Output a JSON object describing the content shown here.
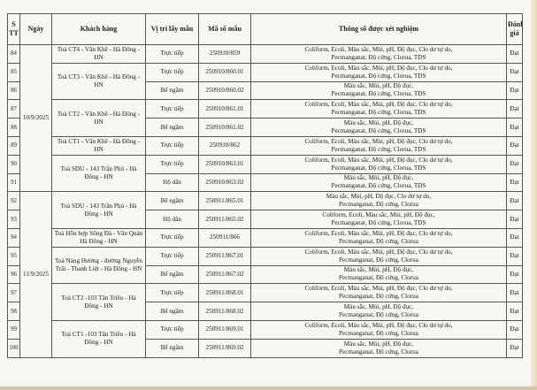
{
  "headers": {
    "stt": "S TT",
    "date": "Ngày",
    "customer": "Khách hàng",
    "location": "Vị trí lấy mẫu",
    "code": "Mã số mẫu",
    "params": "Thông số được xét nghiệm",
    "result": "Đánh giá"
  },
  "dates": [
    {
      "label": "10/9/2025",
      "rows": 8
    },
    {
      "label": "11/9/2025",
      "rows": 9
    }
  ],
  "customers": [
    {
      "line1": "Toà CT4 - Văn Khê - Hà Đông -",
      "line2": "HN",
      "rows": 1
    },
    {
      "line1": "Toà CT3 - Văn Khê - Hà Đông -",
      "line2": "HN",
      "rows": 2
    },
    {
      "line1": "Toà CT2 - Văn Khê - Hà Đông -",
      "line2": "HN",
      "rows": 2
    },
    {
      "line1": "Toà CT1 - Văn Khê - Hà Đông -",
      "line2": "HN",
      "rows": 1
    },
    {
      "line1": "Toà SDU - 143 Trần Phú  - Hà",
      "line2": "Đông - HN",
      "rows": 2
    },
    {
      "line1": "Toà SDU - 143 Trần Phú  - Hà",
      "line2": "Đông - HN",
      "rows": 2
    },
    {
      "line1": "Toà Hỗn hợp Sông Đà - Văn Quán",
      "line2": "Hà Đông - HN",
      "rows": 1
    },
    {
      "line1": "Toà Nàng Hương - đường Nguyễn",
      "line2": "Trãi - Thanh Liệt - Hà Đông - HN",
      "rows": 2
    },
    {
      "line1": "Toà CT2 -103 Tân Triều - Hà",
      "line2": "Đông - HN",
      "rows": 2
    },
    {
      "line1": "Toà CT1 -103 Tân Triều - Hà",
      "line2": "Đông - HN",
      "rows": 2
    }
  ],
  "rows": [
    {
      "stt": "84",
      "location": "Trực tiếp",
      "code": "250910/859",
      "p1": "Coliform, Ecoli, Màu sắc, Mùi, pH, Độ đục, Clo dư tự do,",
      "p2": "Pecmanganat, Độ cứng, Clorua, TDS",
      "result": "Đạt"
    },
    {
      "stt": "85",
      "location": "Trực tiếp",
      "code": "250910/860.01",
      "p1": "Coliform, Ecoli, Màu sắc, Mùi, pH, Độ đục, Clo dư tự do,",
      "p2": "Pecmanganat, Độ cứng, Clorua, TDS",
      "result": "Đạt"
    },
    {
      "stt": "86",
      "location": "Bể ngầm",
      "code": "250910/860.02",
      "p1": "Màu sắc, Mùi, pH, Độ đục,",
      "p2": "Pecmanganat, Độ cứng, Clorua, TDS",
      "result": "Đạt"
    },
    {
      "stt": "87",
      "location": "Trực tiếp",
      "code": "250910/861.01",
      "p1": "Coliform, Ecoli, Màu sắc, Mùi, pH, Độ đục, Clo dư tự do,",
      "p2": "Pecmanganat, Độ cứng, Clorua, TDS",
      "result": "Đạt"
    },
    {
      "stt": "88",
      "location": "Bể ngầm",
      "code": "250910/861.02",
      "p1": "Màu sắc, Mùi, pH, Độ đục,",
      "p2": "Pecmanganat, Độ cứng, Clorua, TDS",
      "result": "Đạt"
    },
    {
      "stt": "89",
      "location": "Trực tiếp",
      "code": "250910/862",
      "p1": "Coliform, Ecoli, Màu sắc, Mùi, pH, Độ đục, Clo dư tự do,",
      "p2": "Pecmanganat, Độ cứng, Clorua, TDS",
      "result": "Đạt"
    },
    {
      "stt": "90",
      "location": "Trực tiếp",
      "code": "250910/863.01",
      "p1": "Coliform, Ecoli, Màu sắc, Mùi, pH, Độ đục, Clo dư tự do,",
      "p2": "Pecmanganat, Độ cứng, Clorua, TDS",
      "result": "Đạt"
    },
    {
      "stt": "91",
      "location": "Hộ dân",
      "code": "250910/863.02",
      "p1": "Màu sắc, Mùi, pH, Độ đục,",
      "p2": "Pecmanganat, Độ cứng, Clorua, TDS",
      "result": "Đạt"
    },
    {
      "stt": "92",
      "location": "Bể ngầm",
      "code": "250911/865.01",
      "p1": "Màu sắc, Mùi, pH, Độ đục, Clo dư tự do,",
      "p2": "Pecmanganat, Độ cứng, Clorua",
      "result": "Đạt"
    },
    {
      "stt": "93",
      "location": "Hộ dân",
      "code": "250911/865.02",
      "p1": "Coliform, Ecoli, Màu sắc, Mùi, pH, Độ đục,",
      "p2": "Pecmanganat, Độ cứng, Clorua, TDS",
      "result": "Đạt"
    },
    {
      "stt": "94",
      "location": "Trực tiếp",
      "code": "250911/866",
      "p1": "Coliform, Ecoli, Màu sắc, Mùi, pH, Độ đục, Clo dư tự do,",
      "p2": "Pecmanganat, Độ cứng, Clorua",
      "result": "Đạt"
    },
    {
      "stt": "95",
      "location": "Trực tiếp",
      "code": "250911/867.01",
      "p1": "Coliform, Ecoli, Màu sắc, Mùi, pH, Độ đục, Clo dư tự do,",
      "p2": "Pecmanganat, Độ cứng, Clorua",
      "result": "Đạt"
    },
    {
      "stt": "96",
      "location": "Bể ngầm",
      "code": "250911/867.02",
      "p1": "Màu sắc, Mùi, pH, Độ đục,",
      "p2": "Pecmanganat, Độ cứng, Clorua",
      "result": "Đạt"
    },
    {
      "stt": "97",
      "location": "Trực tiếp",
      "code": "250911/868.01",
      "p1": "Coliform, Ecoli, Màu sắc, Mùi, pH, Độ đục, Clo dư tự do,",
      "p2": "Pecmanganat, Độ cứng, Clorua",
      "result": "Đạt"
    },
    {
      "stt": "98",
      "location": "Bể ngầm",
      "code": "250911/868.02",
      "p1": "Màu sắc, Mùi, pH, Độ đục,",
      "p2": "Pecmanganat, Độ cứng, Clorua",
      "result": "Đạt"
    },
    {
      "stt": "99",
      "location": "Trực tiếp",
      "code": "250911/869.01",
      "p1": "Coliform, Ecoli, Màu sắc, Mùi, pH, Độ đục, Clo dư tự do,",
      "p2": "Pecmanganat, Độ cứng, Clorua",
      "result": "Đạt"
    },
    {
      "stt": "100",
      "location": "Bể ngầm",
      "code": "250911/869.02",
      "p1": "Màu sắc, Mùi, pH, Độ đục,",
      "p2": "Pecmanganat, Độ cứng, Clorua",
      "result": "Đạt"
    }
  ]
}
